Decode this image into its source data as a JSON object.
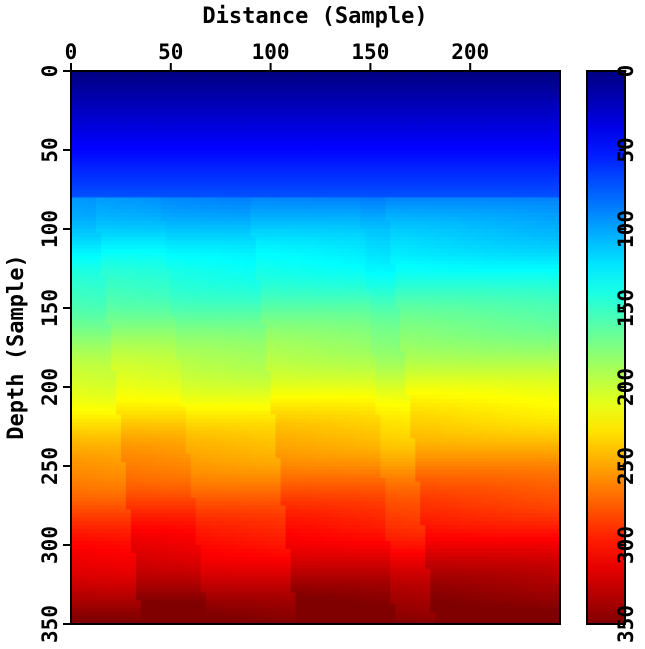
{
  "chart_data": {
    "type": "heatmap",
    "title": "",
    "xlabel": "Distance (Sample)",
    "ylabel": "Depth (Sample)",
    "xlim": [
      0,
      245
    ],
    "ylim": [
      0,
      350
    ],
    "x_axis_position": "top",
    "y_axis_inverted": true,
    "x_ticks": [
      0,
      50,
      100,
      150,
      200
    ],
    "y_ticks": [
      0,
      50,
      100,
      150,
      200,
      250,
      300,
      350
    ],
    "colorbar": {
      "range": [
        0,
        350
      ],
      "ticks": [
        0,
        50,
        100,
        150,
        200,
        250,
        300,
        350
      ],
      "colormap": "jet",
      "inverted": true
    },
    "grid": false,
    "description_values": {
      "surface_value_at_top": 0,
      "value_at_bottom": 350,
      "field": "value increases with depth; layers dip from upper-left to lower-right and are offset by steep fault-like discontinuities"
    },
    "faults": [
      {
        "x_top": 5,
        "x_bottom": 35
      },
      {
        "x_top": 38,
        "x_bottom": 68
      },
      {
        "x_top": 82,
        "x_bottom": 113
      },
      {
        "x_top": 140,
        "x_bottom": 162
      },
      {
        "x_top": 150,
        "x_bottom": 182
      }
    ]
  }
}
